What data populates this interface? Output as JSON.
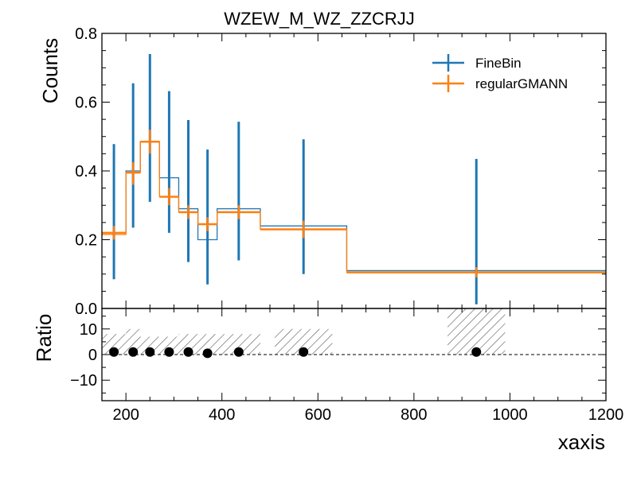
{
  "chart_data": {
    "type": "step-histogram-with-ratio",
    "title": "WZEW_M_WZ_ZZCRJJ",
    "xlabel": "xaxis",
    "ylabel_top": "Counts",
    "ylabel_bottom": "Ratio",
    "xlim": [
      150,
      1200
    ],
    "ylim_top": [
      0,
      0.8
    ],
    "ylim_bottom": [
      -18,
      18
    ],
    "xticks": [
      200,
      400,
      600,
      800,
      1000,
      1200
    ],
    "yticks_top": [
      0.0,
      0.2,
      0.4,
      0.6,
      0.8
    ],
    "yticks_bottom": [
      -10,
      0,
      10
    ],
    "ytick_labels_top": [
      "0.0",
      "0.2",
      "0.4",
      "0.6",
      "0.8"
    ],
    "ytick_labels_bottom": [
      "−10",
      "0",
      "10"
    ],
    "legend_position": "top-right",
    "bin_edges": [
      150,
      200,
      230,
      270,
      310,
      350,
      390,
      480,
      660,
      1200
    ],
    "series": [
      {
        "name": "FineBin",
        "color": "#1f77b4",
        "step_values": [
          0.22,
          0.4,
          0.485,
          0.38,
          0.29,
          0.2,
          0.29,
          0.24,
          0.11
        ],
        "points": [
          {
            "x": 175,
            "y": 0.28,
            "yerr_low": 0.085,
            "yerr_high": 0.478
          },
          {
            "x": 215,
            "y": 0.445,
            "yerr_low": 0.235,
            "yerr_high": 0.655
          },
          {
            "x": 250,
            "y": 0.525,
            "yerr_low": 0.31,
            "yerr_high": 0.74
          },
          {
            "x": 290,
            "y": 0.425,
            "yerr_low": 0.22,
            "yerr_high": 0.632
          },
          {
            "x": 330,
            "y": 0.34,
            "yerr_low": 0.135,
            "yerr_high": 0.548
          },
          {
            "x": 370,
            "y": 0.265,
            "yerr_low": 0.07,
            "yerr_high": 0.462
          },
          {
            "x": 435,
            "y": 0.34,
            "yerr_low": 0.14,
            "yerr_high": 0.543
          },
          {
            "x": 570,
            "y": 0.297,
            "yerr_low": 0.1,
            "yerr_high": 0.492
          },
          {
            "x": 930,
            "y": 0.225,
            "yerr_low": 0.012,
            "yerr_high": 0.435
          }
        ]
      },
      {
        "name": "regularGMANN",
        "color": "#ff7f0e",
        "step_values": [
          0.215,
          0.395,
          0.485,
          0.325,
          0.28,
          0.245,
          0.28,
          0.23,
          0.105
        ],
        "points": [
          {
            "x": 175,
            "y": 0.22,
            "yerr_low": 0.2,
            "yerr_high": 0.24,
            "xerr": 25
          },
          {
            "x": 215,
            "y": 0.395,
            "yerr_low": 0.36,
            "yerr_high": 0.425,
            "xerr": 15
          },
          {
            "x": 250,
            "y": 0.485,
            "yerr_low": 0.45,
            "yerr_high": 0.52,
            "xerr": 20
          },
          {
            "x": 290,
            "y": 0.325,
            "yerr_low": 0.3,
            "yerr_high": 0.35,
            "xerr": 20
          },
          {
            "x": 330,
            "y": 0.28,
            "yerr_low": 0.26,
            "yerr_high": 0.3,
            "xerr": 20
          },
          {
            "x": 370,
            "y": 0.245,
            "yerr_low": 0.225,
            "yerr_high": 0.265,
            "xerr": 20
          },
          {
            "x": 435,
            "y": 0.28,
            "yerr_low": 0.26,
            "yerr_high": 0.3,
            "xerr": 45
          },
          {
            "x": 570,
            "y": 0.23,
            "yerr_low": 0.205,
            "yerr_high": 0.255,
            "xerr": 90
          },
          {
            "x": 930,
            "y": 0.105,
            "yerr_low": 0.09,
            "yerr_high": 0.12,
            "xerr": 270
          }
        ]
      }
    ],
    "ratio": {
      "reference_line": 0,
      "points": [
        {
          "x": 175,
          "y": 1.0
        },
        {
          "x": 215,
          "y": 1.0
        },
        {
          "x": 250,
          "y": 1.0
        },
        {
          "x": 290,
          "y": 1.0
        },
        {
          "x": 330,
          "y": 1.0
        },
        {
          "x": 370,
          "y": 0.5
        },
        {
          "x": 435,
          "y": 1.0
        },
        {
          "x": 570,
          "y": 1.0
        },
        {
          "x": 930,
          "y": 1.0
        }
      ],
      "hatched_bands": [
        {
          "x0": 150,
          "x1": 200,
          "y0": 0,
          "y1": 8
        },
        {
          "x0": 200,
          "x1": 230,
          "y0": 0,
          "y1": 10
        },
        {
          "x0": 230,
          "x1": 270,
          "y0": 0,
          "y1": 7
        },
        {
          "x0": 270,
          "x1": 310,
          "y0": 0,
          "y1": 7
        },
        {
          "x0": 310,
          "x1": 350,
          "y0": 0,
          "y1": 8
        },
        {
          "x0": 350,
          "x1": 390,
          "y0": 0,
          "y1": 8
        },
        {
          "x0": 390,
          "x1": 480,
          "y0": 0,
          "y1": 8
        },
        {
          "x0": 510,
          "x1": 630,
          "y0": 0,
          "y1": 10
        },
        {
          "x0": 870,
          "x1": 990,
          "y0": 0,
          "y1": 20
        }
      ]
    }
  }
}
